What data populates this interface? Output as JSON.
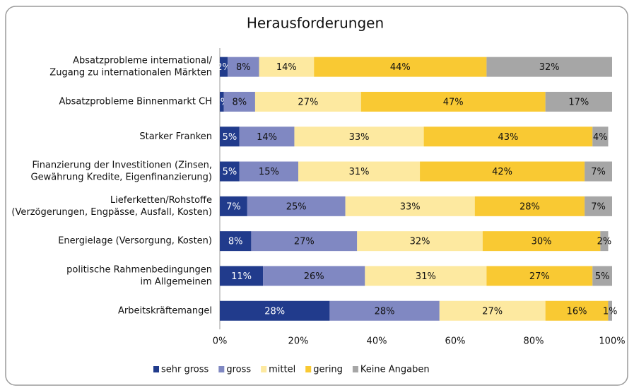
{
  "chart_data": {
    "type": "stacked_bar_horizontal",
    "title": "Herausforderungen",
    "categories": [
      [
        "Absatzprobleme international/",
        "Zugang zu internationalen Märkten"
      ],
      [
        "Absatzprobleme Binnenmarkt CH"
      ],
      [
        "Starker Franken"
      ],
      [
        "Finanzierung der Investitionen (Zinsen,",
        "Gewährung Kredite, Eigenfinanzierung)"
      ],
      [
        "Lieferketten/Rohstoffe",
        "(Verzögerungen, Engpässe, Ausfall, Kosten)"
      ],
      [
        "Energielage (Versorgung, Kosten)"
      ],
      [
        "politische Rahmenbedingungen",
        "im Allgemeinen"
      ],
      [
        "Arbeitskräftemangel"
      ]
    ],
    "series": [
      {
        "name": "sehr gross",
        "color": "#213b8c",
        "values": [
          2,
          1,
          5,
          5,
          7,
          8,
          11,
          28
        ],
        "value_labels": [
          "2%",
          "1%",
          "5%",
          "5%",
          "7%",
          "8%",
          "11%",
          "28%"
        ]
      },
      {
        "name": "gross",
        "color": "#8088c2",
        "values": [
          8,
          8,
          14,
          15,
          25,
          27,
          26,
          28
        ],
        "value_labels": [
          "8%",
          "8%",
          "14%",
          "15%",
          "25%",
          "27%",
          "26%",
          "28%"
        ]
      },
      {
        "name": "mittel",
        "color": "#fde9a0",
        "values": [
          14,
          27,
          33,
          31,
          33,
          32,
          31,
          27
        ],
        "value_labels": [
          "14%",
          "27%",
          "33%",
          "31%",
          "33%",
          "32%",
          "31%",
          "27%"
        ]
      },
      {
        "name": "gering",
        "color": "#f9c933",
        "values": [
          44,
          47,
          43,
          42,
          28,
          30,
          27,
          16
        ],
        "value_labels": [
          "44%",
          "47%",
          "43%",
          "42%",
          "28%",
          "30%",
          "27%",
          "16%"
        ]
      },
      {
        "name": "Keine Angaben",
        "color": "#a6a6a6",
        "values": [
          32,
          17,
          4,
          7,
          7,
          2,
          5,
          1
        ],
        "value_labels": [
          "32%",
          "17%",
          "4%",
          "7%",
          "7%",
          "2%",
          "5%",
          "1%"
        ]
      }
    ],
    "xlim": [
      0,
      100
    ],
    "xticks": [
      {
        "value": 0,
        "label": "0%"
      },
      {
        "value": 20,
        "label": "20%"
      },
      {
        "value": 40,
        "label": "40%"
      },
      {
        "value": 60,
        "label": "60%"
      },
      {
        "value": 80,
        "label": "80%"
      },
      {
        "value": 100,
        "label": "100%"
      }
    ],
    "legend": "bottom"
  }
}
